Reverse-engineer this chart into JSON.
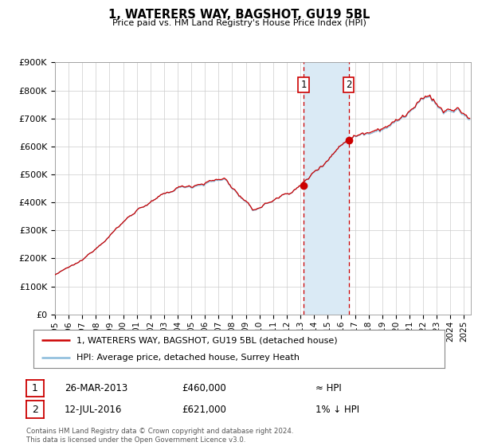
{
  "title": "1, WATERERS WAY, BAGSHOT, GU19 5BL",
  "subtitle": "Price paid vs. HM Land Registry's House Price Index (HPI)",
  "ylim": [
    0,
    900000
  ],
  "yticks": [
    0,
    100000,
    200000,
    300000,
    400000,
    500000,
    600000,
    700000,
    800000,
    900000
  ],
  "ytick_labels": [
    "£0",
    "£100K",
    "£200K",
    "£300K",
    "£400K",
    "£500K",
    "£600K",
    "£700K",
    "£800K",
    "£900K"
  ],
  "xlim_start": 1995.0,
  "xlim_end": 2025.5,
  "xticks": [
    1995,
    1996,
    1997,
    1998,
    1999,
    2000,
    2001,
    2002,
    2003,
    2004,
    2005,
    2006,
    2007,
    2008,
    2009,
    2010,
    2011,
    2012,
    2013,
    2014,
    2015,
    2016,
    2017,
    2018,
    2019,
    2020,
    2021,
    2022,
    2023,
    2024,
    2025
  ],
  "sale1_x": 2013.23,
  "sale1_y": 460000,
  "sale1_label": "1",
  "sale1_date": "26-MAR-2013",
  "sale1_price": "£460,000",
  "sale1_hpi": "≈ HPI",
  "sale2_x": 2016.54,
  "sale2_y": 621000,
  "sale2_label": "2",
  "sale2_date": "12-JUL-2016",
  "sale2_price": "£621,000",
  "sale2_hpi": "1% ↓ HPI",
  "hpi_color": "#8bbcdb",
  "price_color": "#cc0000",
  "shade_color": "#daeaf5",
  "vline_color": "#cc0000",
  "grid_color": "#cccccc",
  "background_color": "#ffffff",
  "legend_label1": "1, WATERERS WAY, BAGSHOT, GU19 5BL (detached house)",
  "legend_label2": "HPI: Average price, detached house, Surrey Heath",
  "footer1": "Contains HM Land Registry data © Crown copyright and database right 2024.",
  "footer2": "This data is licensed under the Open Government Licence v3.0."
}
